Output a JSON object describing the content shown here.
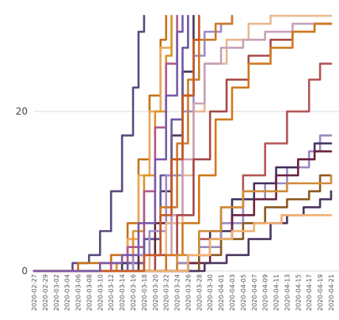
{
  "chart_data": {
    "type": "line",
    "title": "",
    "xlabel": "",
    "ylabel": "",
    "ylim": [
      0,
      32
    ],
    "y_ticks": [
      0,
      20
    ],
    "grid": "horizontal",
    "legend": "none",
    "x_tick_labels": [
      "2020-02-27",
      "2020-02-29",
      "2020-03-02",
      "2020-03-04",
      "2020-03-06",
      "2020-03-08",
      "2020-03-10",
      "2020-03-12",
      "2020-03-14",
      "2020-03-16",
      "2020-03-18",
      "2020-03-20",
      "2020-03-22",
      "2020-03-24",
      "2020-03-26",
      "2020-03-28",
      "2020-03-30",
      "2020-04-01",
      "2020-04-03",
      "2020-04-05",
      "2020-04-07",
      "2020-04-09",
      "2020-04-11",
      "2020-04-13",
      "2020-04-15",
      "2020-04-17",
      "2020-04-19",
      "2020-04-21"
    ],
    "series": [
      {
        "color": "#5b4a7a",
        "points": [
          [
            "2020-02-27",
            0
          ],
          [
            "2020-03-02",
            0
          ],
          [
            "2020-03-05",
            1
          ],
          [
            "2020-03-08",
            2
          ],
          [
            "2020-03-10",
            5
          ],
          [
            "2020-03-12",
            10
          ],
          [
            "2020-03-14",
            17
          ],
          [
            "2020-03-16",
            23
          ],
          [
            "2020-03-17",
            30
          ],
          [
            "2020-03-18",
            32
          ]
        ]
      },
      {
        "color": "#c8711a",
        "points": [
          [
            "2020-02-27",
            0
          ],
          [
            "2020-03-03",
            0
          ],
          [
            "2020-03-06",
            1
          ],
          [
            "2020-03-08",
            1
          ],
          [
            "2020-03-12",
            2
          ],
          [
            "2020-03-15",
            6
          ],
          [
            "2020-03-17",
            14
          ],
          [
            "2020-03-19",
            22
          ],
          [
            "2020-03-21",
            29
          ],
          [
            "2020-03-22",
            32
          ]
        ]
      },
      {
        "color": "#e8a85c",
        "points": [
          [
            "2020-02-27",
            0
          ],
          [
            "2020-03-08",
            0
          ],
          [
            "2020-03-12",
            1
          ],
          [
            "2020-03-15",
            4
          ],
          [
            "2020-03-17",
            12
          ],
          [
            "2020-03-19",
            20
          ],
          [
            "2020-03-21",
            28
          ],
          [
            "2020-03-23",
            32
          ]
        ]
      },
      {
        "color": "#d8962a",
        "points": [
          [
            "2020-02-27",
            0
          ],
          [
            "2020-03-10",
            0
          ],
          [
            "2020-03-13",
            1
          ],
          [
            "2020-03-16",
            5
          ],
          [
            "2020-03-18",
            12
          ],
          [
            "2020-03-20",
            20
          ],
          [
            "2020-03-22",
            27
          ],
          [
            "2020-03-23",
            32
          ]
        ]
      },
      {
        "color": "#b05a8a",
        "points": [
          [
            "2020-02-27",
            0
          ],
          [
            "2020-03-09",
            0
          ],
          [
            "2020-03-12",
            1
          ],
          [
            "2020-03-15",
            3
          ],
          [
            "2020-03-18",
            10
          ],
          [
            "2020-03-20",
            18
          ],
          [
            "2020-03-22",
            26
          ],
          [
            "2020-03-24",
            32
          ]
        ]
      },
      {
        "color": "#4a3558",
        "points": [
          [
            "2020-02-27",
            0
          ],
          [
            "2020-03-10",
            0
          ],
          [
            "2020-03-14",
            1
          ],
          [
            "2020-03-18",
            4
          ],
          [
            "2020-03-21",
            10
          ],
          [
            "2020-03-23",
            17
          ],
          [
            "2020-03-25",
            25
          ],
          [
            "2020-03-27",
            32
          ]
        ]
      },
      {
        "color": "#6a5aa0",
        "points": [
          [
            "2020-02-27",
            0
          ],
          [
            "2020-03-12",
            0
          ],
          [
            "2020-03-15",
            1
          ],
          [
            "2020-03-18",
            4
          ],
          [
            "2020-03-21",
            12
          ],
          [
            "2020-03-23",
            19
          ],
          [
            "2020-03-25",
            28
          ],
          [
            "2020-03-26",
            32
          ]
        ]
      },
      {
        "color": "#5c2a3a",
        "points": [
          [
            "2020-02-27",
            0
          ],
          [
            "2020-03-14",
            0
          ],
          [
            "2020-03-17",
            2
          ],
          [
            "2020-03-20",
            6
          ],
          [
            "2020-03-23",
            14
          ],
          [
            "2020-03-25",
            22
          ],
          [
            "2020-03-27",
            29
          ],
          [
            "2020-03-28",
            32
          ]
        ]
      },
      {
        "color": "#a08cc8",
        "points": [
          [
            "2020-02-27",
            0
          ],
          [
            "2020-03-12",
            0
          ],
          [
            "2020-03-16",
            2
          ],
          [
            "2020-03-19",
            5
          ],
          [
            "2020-03-22",
            12
          ],
          [
            "2020-03-25",
            20
          ],
          [
            "2020-03-27",
            27
          ],
          [
            "2020-03-29",
            30
          ],
          [
            "2020-04-01",
            31
          ],
          [
            "2020-04-03",
            32
          ]
        ]
      },
      {
        "color": "#cc7a2a",
        "points": [
          [
            "2020-02-27",
            0
          ],
          [
            "2020-03-14",
            0
          ],
          [
            "2020-03-18",
            2
          ],
          [
            "2020-03-21",
            8
          ],
          [
            "2020-03-24",
            16
          ],
          [
            "2020-03-26",
            24
          ],
          [
            "2020-03-28",
            29
          ],
          [
            "2020-03-31",
            31
          ],
          [
            "2020-04-03",
            32
          ]
        ]
      },
      {
        "color": "#e8b890",
        "points": [
          [
            "2020-02-27",
            0
          ],
          [
            "2020-03-15",
            0
          ],
          [
            "2020-03-19",
            2
          ],
          [
            "2020-03-22",
            6
          ],
          [
            "2020-03-25",
            12
          ],
          [
            "2020-03-27",
            20
          ],
          [
            "2020-03-29",
            26
          ],
          [
            "2020-04-02",
            29
          ],
          [
            "2020-04-06",
            31
          ],
          [
            "2020-04-10",
            32
          ],
          [
            "2020-04-21",
            32
          ]
        ]
      },
      {
        "color": "#c8a0b8",
        "points": [
          [
            "2020-02-27",
            0
          ],
          [
            "2020-03-16",
            0
          ],
          [
            "2020-03-20",
            2
          ],
          [
            "2020-03-23",
            7
          ],
          [
            "2020-03-25",
            14
          ],
          [
            "2020-03-27",
            21
          ],
          [
            "2020-03-29",
            26
          ],
          [
            "2020-04-01",
            28
          ],
          [
            "2020-04-05",
            29
          ],
          [
            "2020-04-09",
            30
          ],
          [
            "2020-04-14",
            31
          ],
          [
            "2020-04-21",
            31
          ]
        ]
      },
      {
        "color": "#a84848",
        "points": [
          [
            "2020-02-27",
            0
          ],
          [
            "2020-03-16",
            0
          ],
          [
            "2020-03-20",
            2
          ],
          [
            "2020-03-24",
            7
          ],
          [
            "2020-03-27",
            14
          ],
          [
            "2020-03-30",
            20
          ],
          [
            "2020-04-02",
            24
          ],
          [
            "2020-04-06",
            27
          ],
          [
            "2020-04-10",
            29
          ],
          [
            "2020-04-14",
            30
          ],
          [
            "2020-04-18",
            31
          ],
          [
            "2020-04-21",
            31
          ]
        ]
      },
      {
        "color": "#d07820",
        "points": [
          [
            "2020-02-27",
            0
          ],
          [
            "2020-03-18",
            0
          ],
          [
            "2020-03-22",
            2
          ],
          [
            "2020-03-25",
            6
          ],
          [
            "2020-03-28",
            12
          ],
          [
            "2020-03-31",
            19
          ],
          [
            "2020-04-03",
            23
          ],
          [
            "2020-04-06",
            26
          ],
          [
            "2020-04-10",
            28
          ],
          [
            "2020-04-14",
            30
          ],
          [
            "2020-04-18",
            31
          ],
          [
            "2020-04-21",
            31
          ]
        ]
      },
      {
        "color": "#b45555",
        "points": [
          [
            "2020-02-27",
            0
          ],
          [
            "2020-03-20",
            0
          ],
          [
            "2020-03-24",
            1
          ],
          [
            "2020-03-28",
            4
          ],
          [
            "2020-04-01",
            8
          ],
          [
            "2020-04-05",
            12
          ],
          [
            "2020-04-09",
            16
          ],
          [
            "2020-04-13",
            20
          ],
          [
            "2020-04-17",
            24
          ],
          [
            "2020-04-19",
            26
          ],
          [
            "2020-04-21",
            26
          ]
        ]
      },
      {
        "color": "#9a8ac0",
        "points": [
          [
            "2020-02-27",
            0
          ],
          [
            "2020-03-20",
            0
          ],
          [
            "2020-03-24",
            1
          ],
          [
            "2020-03-28",
            3
          ],
          [
            "2020-04-01",
            6
          ],
          [
            "2020-04-05",
            9
          ],
          [
            "2020-04-09",
            11
          ],
          [
            "2020-04-13",
            13
          ],
          [
            "2020-04-17",
            15
          ],
          [
            "2020-04-19",
            17
          ],
          [
            "2020-04-21",
            17
          ]
        ]
      },
      {
        "color": "#443060",
        "points": [
          [
            "2020-02-27",
            0
          ],
          [
            "2020-03-22",
            0
          ],
          [
            "2020-03-26",
            2
          ],
          [
            "2020-03-30",
            5
          ],
          [
            "2020-04-03",
            9
          ],
          [
            "2020-04-07",
            11
          ],
          [
            "2020-04-11",
            13
          ],
          [
            "2020-04-15",
            14
          ],
          [
            "2020-04-18",
            16
          ],
          [
            "2020-04-21",
            16
          ]
        ]
      },
      {
        "color": "#6a2440",
        "points": [
          [
            "2020-02-27",
            0
          ],
          [
            "2020-03-22",
            0
          ],
          [
            "2020-03-26",
            1
          ],
          [
            "2020-03-30",
            4
          ],
          [
            "2020-04-03",
            7
          ],
          [
            "2020-04-07",
            9
          ],
          [
            "2020-04-11",
            12
          ],
          [
            "2020-04-15",
            14
          ],
          [
            "2020-04-18",
            15
          ],
          [
            "2020-04-21",
            15
          ]
        ]
      },
      {
        "color": "#8a5a20",
        "points": [
          [
            "2020-02-27",
            0
          ],
          [
            "2020-03-24",
            0
          ],
          [
            "2020-03-28",
            2
          ],
          [
            "2020-04-01",
            4
          ],
          [
            "2020-04-05",
            6
          ],
          [
            "2020-04-09",
            8
          ],
          [
            "2020-04-13",
            9
          ],
          [
            "2020-04-17",
            10
          ],
          [
            "2020-04-19",
            12
          ],
          [
            "2020-04-21",
            12
          ]
        ]
      },
      {
        "color": "#d08a38",
        "points": [
          [
            "2020-02-27",
            0
          ],
          [
            "2020-03-20",
            0
          ],
          [
            "2020-03-24",
            2
          ],
          [
            "2020-03-28",
            5
          ],
          [
            "2020-04-01",
            8
          ],
          [
            "2020-04-05",
            10
          ],
          [
            "2020-04-09",
            10
          ],
          [
            "2020-04-13",
            11
          ],
          [
            "2020-04-17",
            11
          ],
          [
            "2020-04-21",
            12
          ]
        ]
      },
      {
        "color": "#4a3560",
        "points": [
          [
            "2020-02-27",
            0
          ],
          [
            "2020-03-25",
            0
          ],
          [
            "2020-03-29",
            1
          ],
          [
            "2020-04-02",
            2
          ],
          [
            "2020-04-06",
            4
          ],
          [
            "2020-04-10",
            6
          ],
          [
            "2020-04-13",
            7
          ],
          [
            "2020-04-16",
            8
          ],
          [
            "2020-04-19",
            9
          ],
          [
            "2020-04-21",
            10
          ]
        ]
      },
      {
        "color": "#f0b070",
        "points": [
          [
            "2020-02-27",
            0
          ],
          [
            "2020-03-22",
            0
          ],
          [
            "2020-03-26",
            2
          ],
          [
            "2020-03-30",
            4
          ],
          [
            "2020-04-03",
            5
          ],
          [
            "2020-04-07",
            6
          ],
          [
            "2020-04-10",
            6
          ],
          [
            "2020-04-12",
            7
          ],
          [
            "2020-04-15",
            7
          ],
          [
            "2020-04-21",
            7
          ]
        ]
      },
      {
        "color": "#c85a28",
        "points": [
          [
            "2020-02-27",
            0
          ],
          [
            "2020-03-14",
            0
          ],
          [
            "2020-03-18",
            2
          ],
          [
            "2020-03-21",
            7
          ],
          [
            "2020-03-23",
            14
          ],
          [
            "2020-03-25",
            22
          ],
          [
            "2020-03-27",
            29
          ],
          [
            "2020-03-28",
            32
          ]
        ]
      },
      {
        "color": "#7a5aa8",
        "points": [
          [
            "2020-02-27",
            0
          ],
          [
            "2020-03-06",
            0
          ],
          [
            "2020-03-10",
            1
          ],
          [
            "2020-03-14",
            2
          ],
          [
            "2020-03-17",
            6
          ],
          [
            "2020-03-20",
            14
          ],
          [
            "2020-03-22",
            22
          ],
          [
            "2020-03-24",
            30
          ],
          [
            "2020-03-25",
            32
          ]
        ]
      }
    ]
  }
}
